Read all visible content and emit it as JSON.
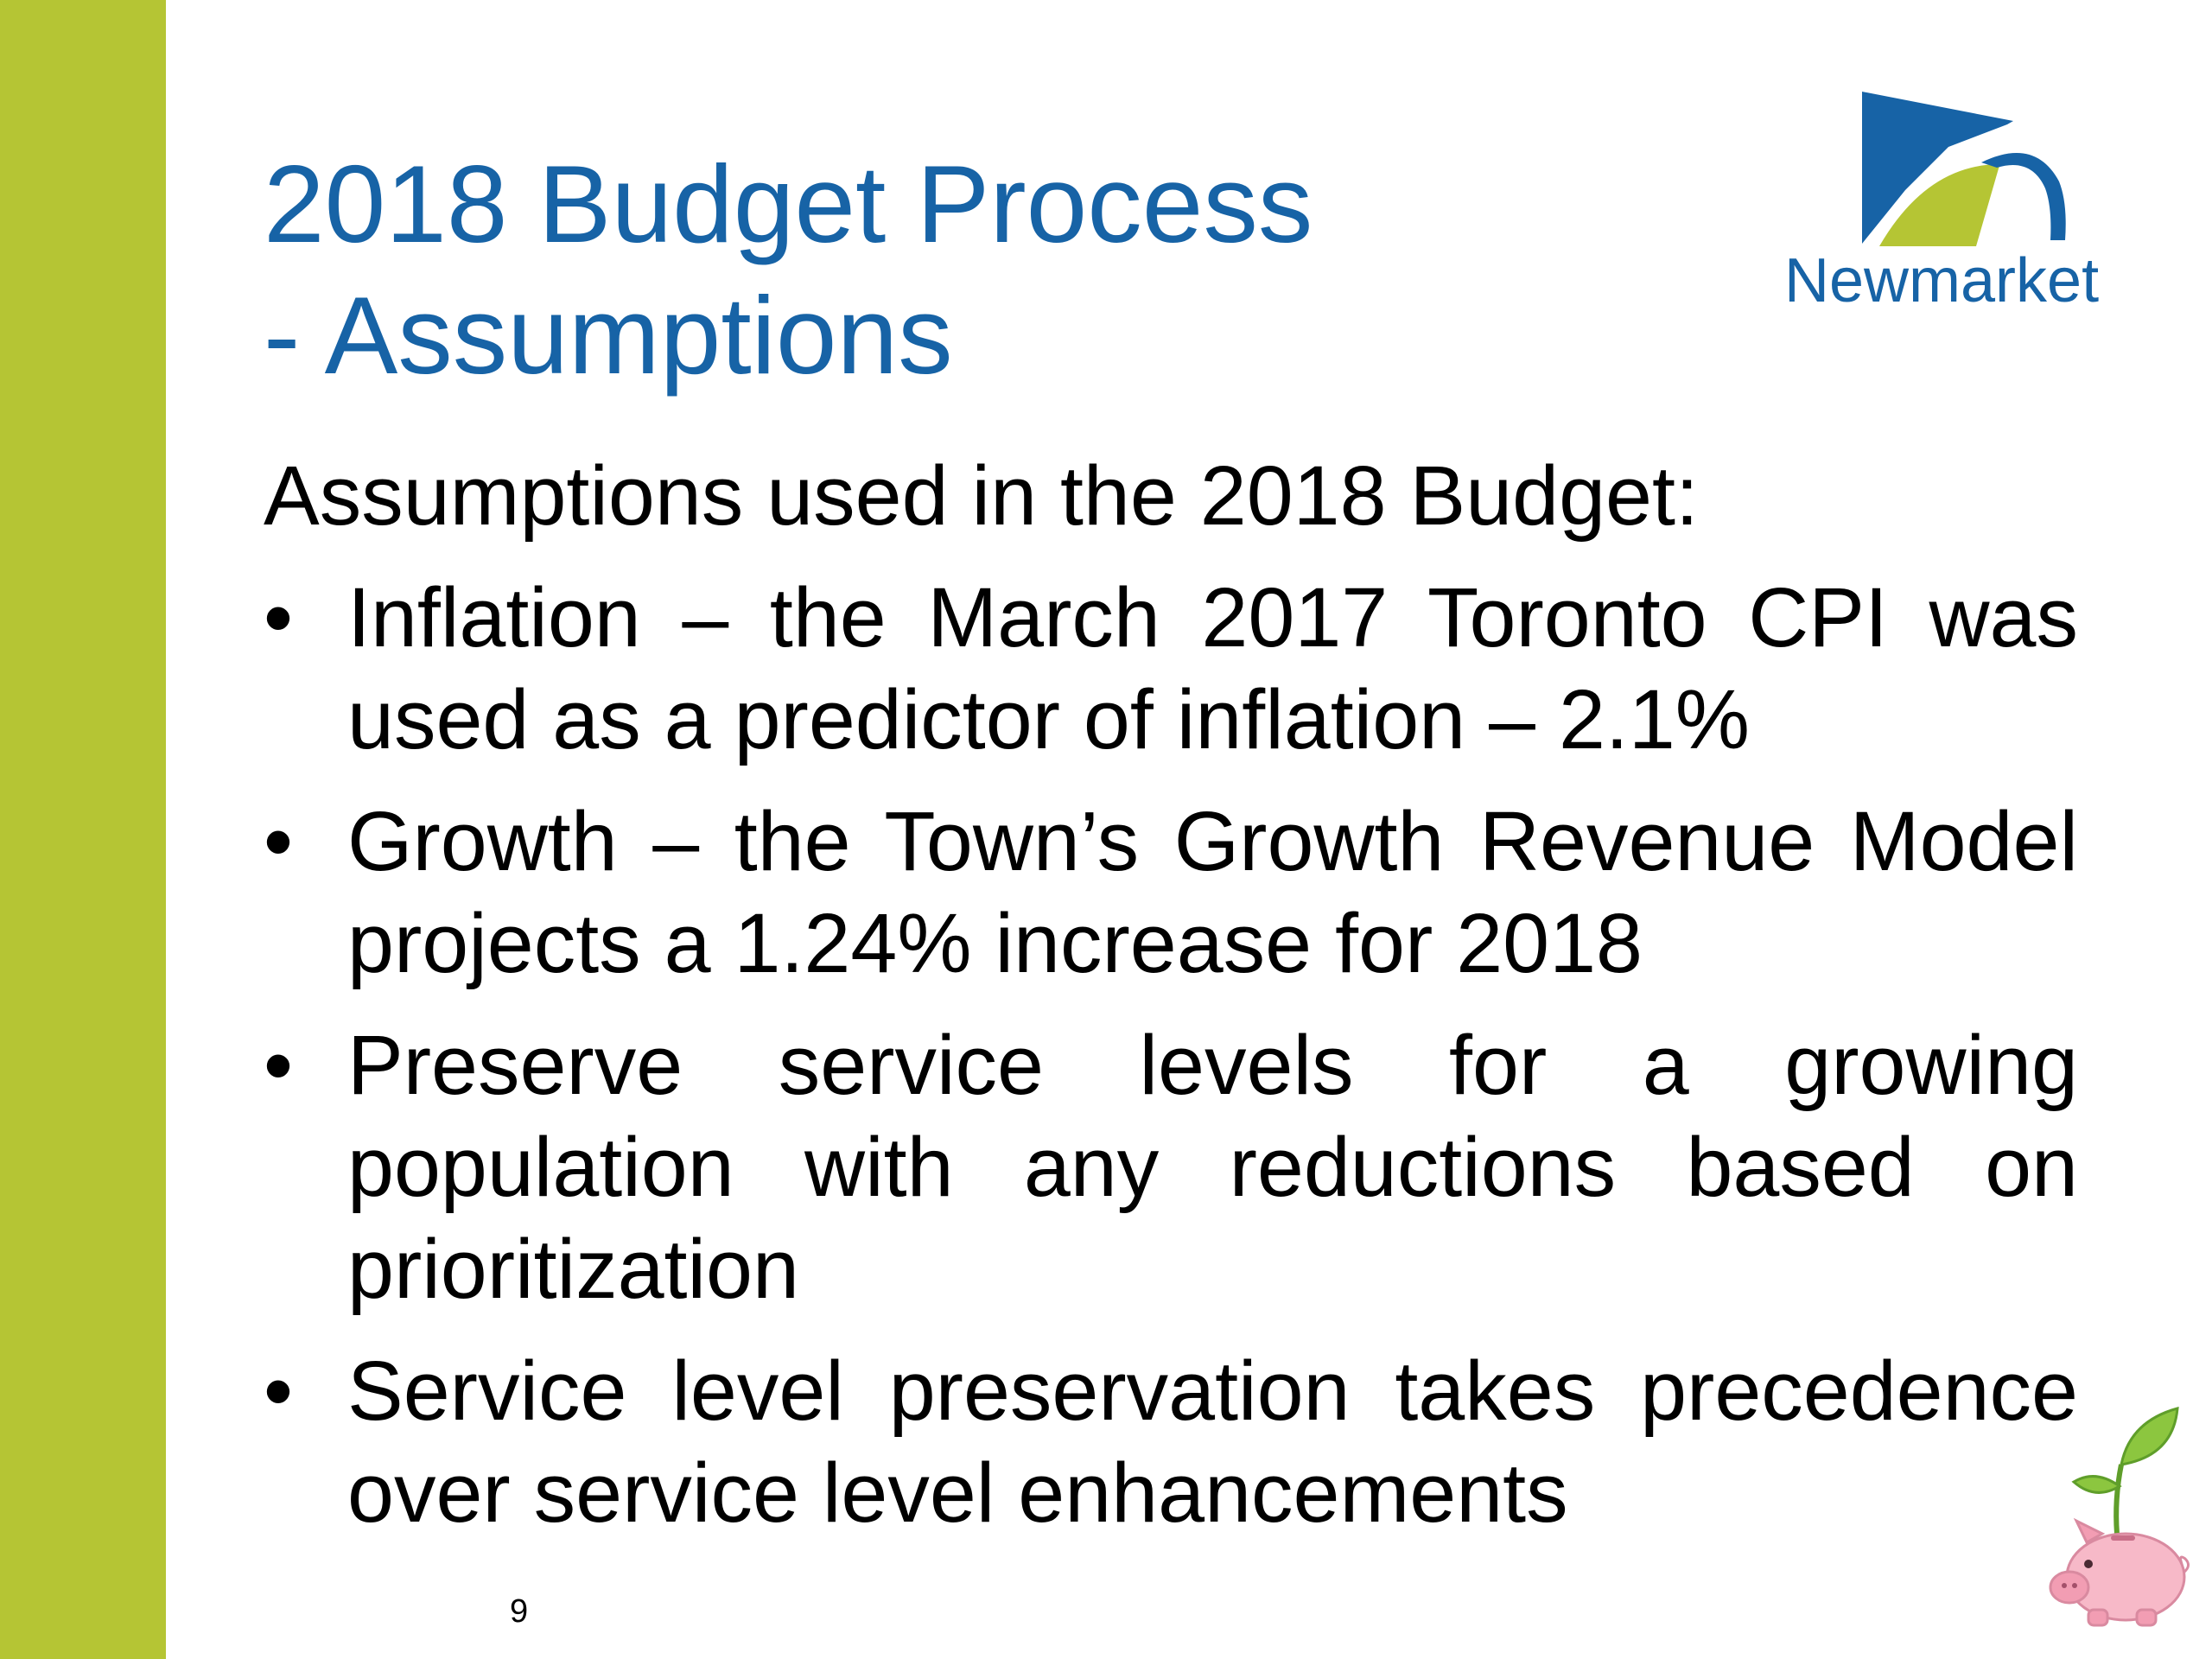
{
  "slide": {
    "title_line1": "2018 Budget Process",
    "title_line2": "- Assumptions",
    "intro": "Assumptions used in the 2018 Budget:",
    "bullet_symbol": "•",
    "bullets": [
      "Inflation – the March 2017 Toronto CPI was used as a predictor of inflation – 2.1%",
      "Growth – the Town’s Growth Revenue Model projects a 1.24% increase for 2018",
      "Preserve service levels for a growing population with any reductions based on prioritization",
      "Service level preservation takes precedence over service level enhancements"
    ],
    "page_number": "9"
  },
  "logo": {
    "name": "Newmarket"
  },
  "colors": {
    "accent_bar": "#b5c534",
    "title": "#1763a6",
    "body_text": "#000000"
  },
  "icons": {
    "logo": "newmarket-logo-icon",
    "decoration": "piggy-bank-sprout-icon"
  }
}
